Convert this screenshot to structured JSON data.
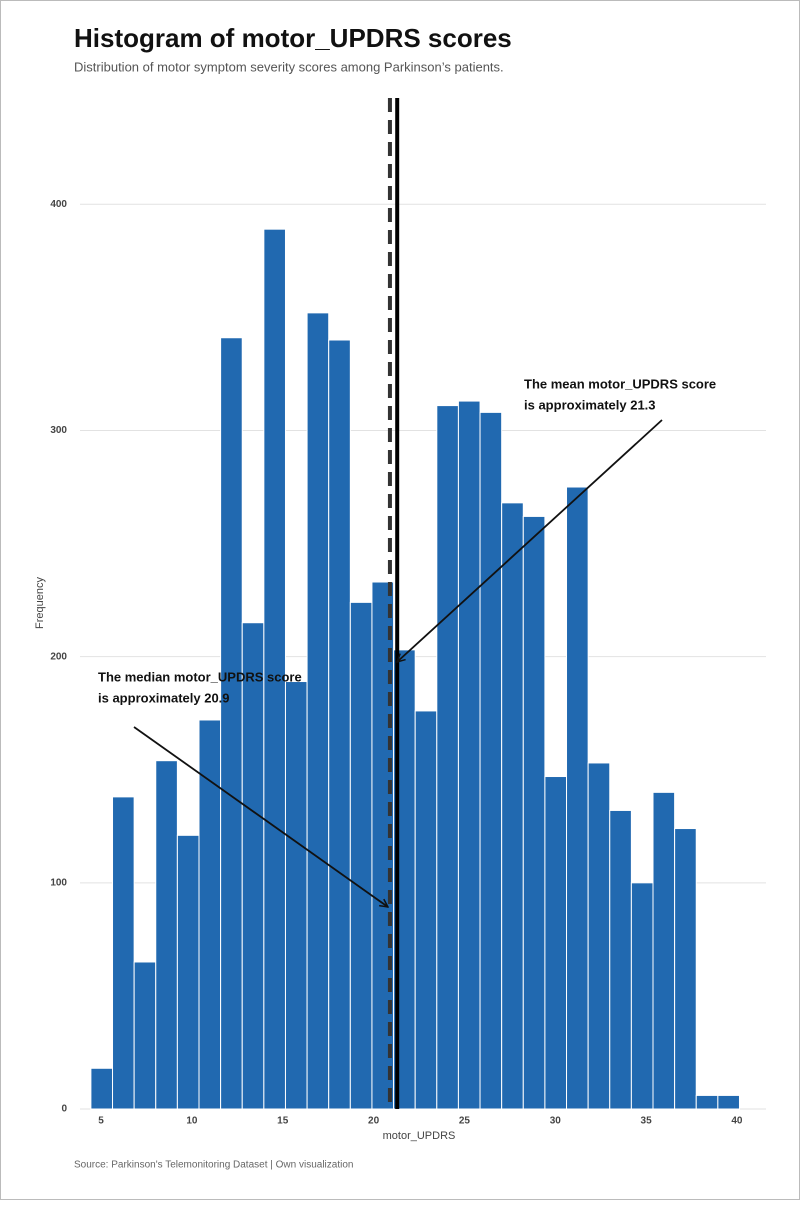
{
  "chart_data": {
    "type": "histogram",
    "title": "Histogram of motor_UPDRS scores",
    "subtitle": "Distribution of motor symptom severity scores among Parkinson’s patients.",
    "caption": "Source: Parkinson's Telemonitoring Dataset | Own visualization",
    "x_label": "motor_UPDRS",
    "y_label": "Frequency",
    "bins": [
      4.44,
      5.63,
      6.82,
      8.01,
      9.2,
      10.39,
      11.58,
      12.77,
      13.96,
      15.15,
      16.34,
      17.53,
      18.72,
      19.91,
      21.1,
      22.29,
      23.48,
      24.67,
      25.86,
      27.05,
      28.24,
      29.43,
      30.62,
      31.81,
      33.0,
      34.19,
      35.38,
      36.57,
      37.76,
      38.95,
      40.14
    ],
    "values": [
      18,
      138,
      65,
      154,
      121,
      172,
      341,
      215,
      389,
      189,
      352,
      340,
      224,
      233,
      203,
      176,
      311,
      313,
      308,
      268,
      262,
      147,
      275,
      153,
      132,
      100,
      140,
      124,
      6,
      6
    ],
    "color": "#2169b0",
    "xlim": [
      3.84,
      41.6
    ],
    "ylim": [
      0,
      447
    ],
    "xticks": [
      5,
      10,
      15,
      20,
      25,
      30,
      35,
      40
    ],
    "yticks": [
      0,
      100,
      200,
      300,
      400
    ],
    "grid": true,
    "mean": 21.3,
    "median": 20.9,
    "annotations": [
      {
        "lines": [
          "The mean motor_UPDRS score",
          "is approximately 21.3"
        ]
      },
      {
        "lines": [
          "The median motor_UPDRS score",
          "is approximately 20.9"
        ]
      }
    ]
  }
}
